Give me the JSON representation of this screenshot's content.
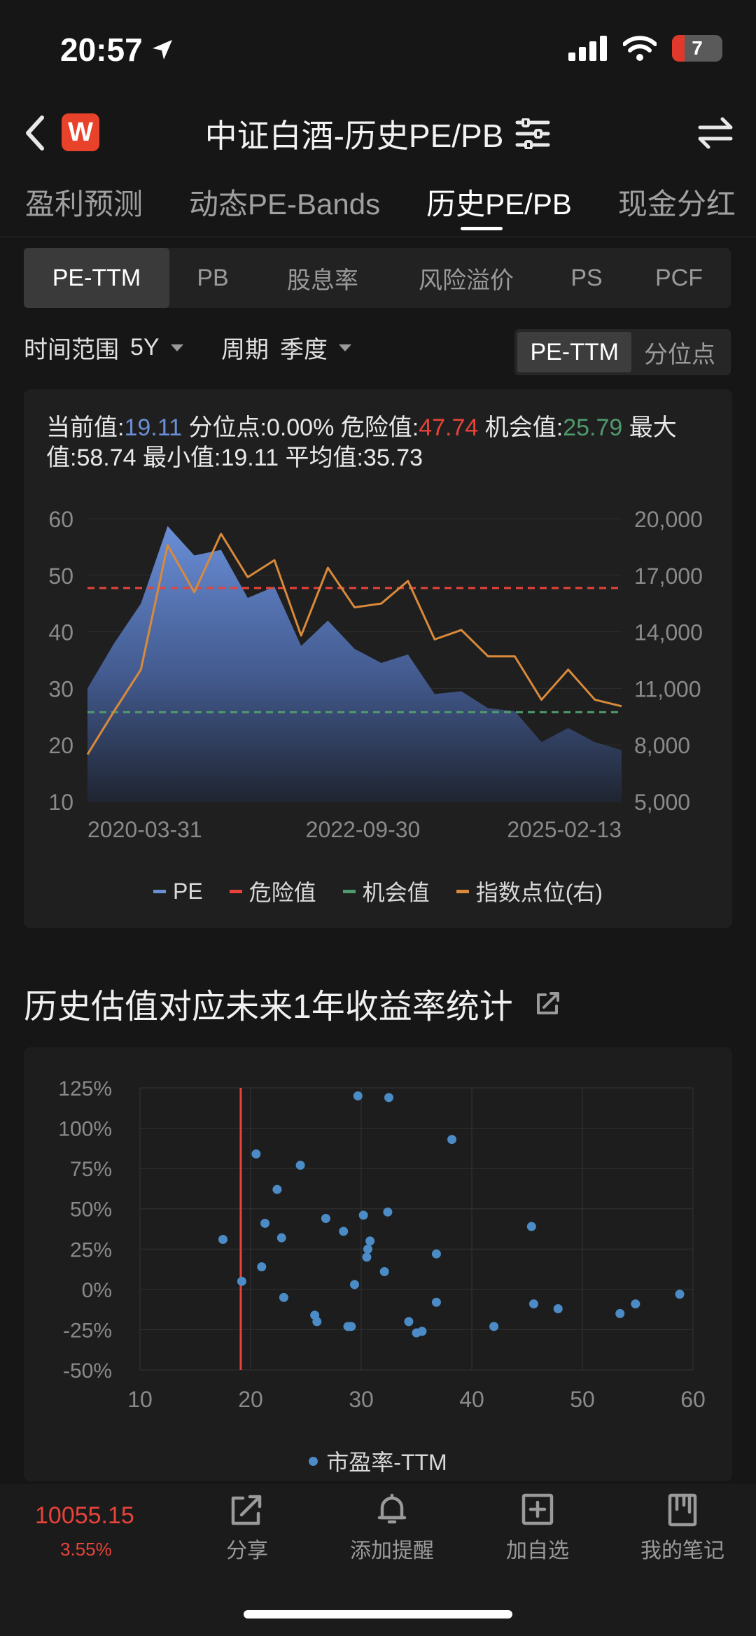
{
  "status": {
    "time": "20:57",
    "battery": "7"
  },
  "header": {
    "title": "中证白酒-历史PE/PB",
    "logo": "W"
  },
  "tabs": [
    {
      "label": "盈利预测"
    },
    {
      "label": "动态PE-Bands"
    },
    {
      "label": "历史PE/PB",
      "active": true
    },
    {
      "label": "现金分红"
    }
  ],
  "metrics": [
    "PE-TTM",
    "PB",
    "股息率",
    "风险溢价",
    "PS",
    "PCF"
  ],
  "filters": {
    "range_label": "时间范围",
    "range_value": "5Y",
    "period_label": "周期",
    "period_value": "季度",
    "toggle": [
      "PE-TTM",
      "分位点"
    ]
  },
  "stats": {
    "current_label": "当前值:",
    "current": "19.11",
    "pct_label": " 分位点:",
    "pct": "0.00%",
    "danger_label": " 危险值:",
    "danger": "47.74",
    "chance_label": " 机会值:",
    "chance": "25.79",
    "max_label": " 最大值:",
    "max": "58.74",
    "min_label": " 最小值:",
    "min": "19.11",
    "avg_label": " 平均值:",
    "avg": "35.73"
  },
  "chart_data": [
    {
      "type": "area",
      "x_ticks": [
        "2020-03-31",
        "2022-09-30",
        "2025-02-13"
      ],
      "ylim": [
        10,
        60
      ],
      "yticks": [
        "60",
        "50",
        "40",
        "30",
        "20",
        "10"
      ],
      "y2lim": [
        5000,
        20000
      ],
      "y2ticks": [
        "20,000",
        "17,000",
        "14,000",
        "11,000",
        "8,000",
        "5,000"
      ],
      "danger": 47.74,
      "chance": 25.79,
      "colors": {
        "pe": "#6b8fd6",
        "danger": "#e8433a",
        "chance": "#4f9a6c",
        "index": "#d98a3a"
      },
      "series": [
        {
          "name": "PE",
          "values": [
            30,
            38,
            45,
            58.7,
            53.5,
            54.5,
            46,
            48,
            37.5,
            42,
            37,
            34.5,
            36,
            29,
            29.5,
            26.5,
            26,
            20.5,
            23,
            20.5,
            19.1
          ]
        },
        {
          "name": "指数点位(右)",
          "values": [
            7500,
            9800,
            12000,
            18600,
            16100,
            19200,
            16900,
            17800,
            13800,
            17400,
            15300,
            15500,
            16700,
            13600,
            14100,
            12700,
            12700,
            10400,
            12000,
            10400,
            10055
          ]
        }
      ],
      "legend": [
        "PE",
        "危险值",
        "机会值",
        "指数点位(右)"
      ]
    },
    {
      "type": "scatter",
      "xlim": [
        10,
        60
      ],
      "xticks": [
        "10",
        "20",
        "30",
        "40",
        "50",
        "60"
      ],
      "ylim": [
        -50,
        125
      ],
      "yticks": [
        "125%",
        "100%",
        "75%",
        "50%",
        "25%",
        "0%",
        "-25%",
        "-50%"
      ],
      "marker_x": 19.11,
      "series": [
        {
          "name": "市盈率-TTM",
          "points": [
            [
              17.5,
              31
            ],
            [
              19.2,
              5
            ],
            [
              20.5,
              84
            ],
            [
              21,
              14
            ],
            [
              21.3,
              41
            ],
            [
              22.4,
              62
            ],
            [
              22.8,
              32
            ],
            [
              23,
              -5
            ],
            [
              24.5,
              77
            ],
            [
              25.8,
              -16
            ],
            [
              26,
              -20
            ],
            [
              26.8,
              44
            ],
            [
              28.4,
              36
            ],
            [
              28.8,
              -23
            ],
            [
              29.1,
              -23
            ],
            [
              29.4,
              3
            ],
            [
              29.7,
              120
            ],
            [
              30.2,
              46
            ],
            [
              30.5,
              20
            ],
            [
              30.6,
              25
            ],
            [
              30.8,
              30
            ],
            [
              32.1,
              11
            ],
            [
              32.4,
              48
            ],
            [
              32.5,
              119
            ],
            [
              34.3,
              -20
            ],
            [
              35,
              -27
            ],
            [
              35.5,
              -26
            ],
            [
              36.8,
              22
            ],
            [
              36.8,
              -8
            ],
            [
              38.2,
              93
            ],
            [
              42,
              -23
            ],
            [
              45.4,
              39
            ],
            [
              45.6,
              -9
            ],
            [
              47.8,
              -12
            ],
            [
              53.4,
              -15
            ],
            [
              54.8,
              -9
            ],
            [
              58.8,
              -3
            ]
          ]
        }
      ]
    }
  ],
  "section2": {
    "title": "历史估值对应未来1年收益率统计"
  },
  "bottom": {
    "price": "10055.15",
    "change": "3.55%",
    "nav": [
      "分享",
      "添加提醒",
      "加自选",
      "我的笔记"
    ]
  }
}
